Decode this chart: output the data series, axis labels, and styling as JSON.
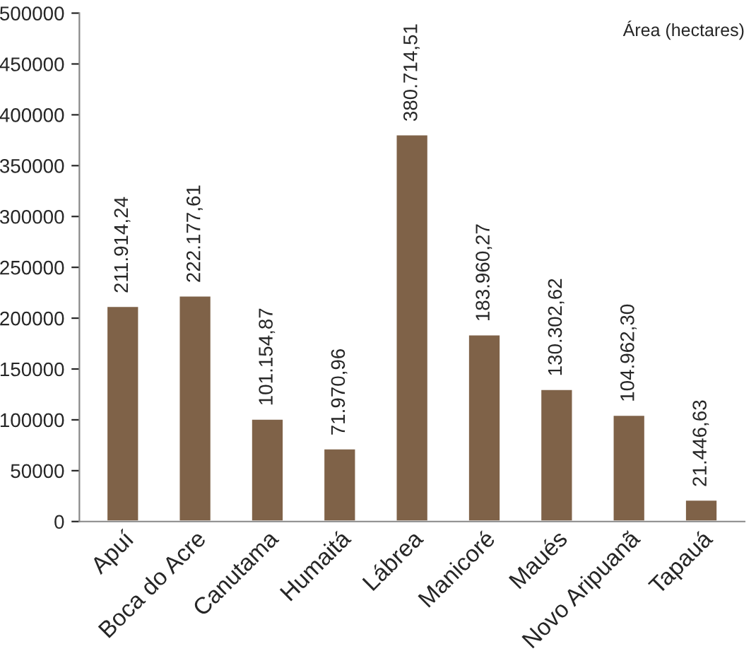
{
  "chart_data": {
    "type": "bar",
    "ylabel": "Área (hectares)",
    "categories": [
      "Apuí",
      "Boca do Acre",
      "Canutama",
      "Humaitá",
      "Lábrea",
      "Manicoré",
      "Maués",
      "Novo Aripuanã",
      "Tapauá"
    ],
    "values": [
      211914.24,
      222177.61,
      101154.87,
      71970.96,
      380714.51,
      183960.27,
      130302.62,
      104962.3,
      21446.63
    ],
    "value_labels": [
      "211.914,24",
      "222.177,61",
      "101.154,87",
      "71.970,96",
      "380.714,51",
      "183.960,27",
      "130.302,62",
      "104.962,30",
      "21.446,63"
    ],
    "color": "#7f6248",
    "ylim": [
      0,
      500000
    ],
    "yticks": [
      0,
      50000,
      100000,
      150000,
      200000,
      250000,
      300000,
      350000,
      400000,
      450000,
      500000
    ],
    "grid": false
  }
}
